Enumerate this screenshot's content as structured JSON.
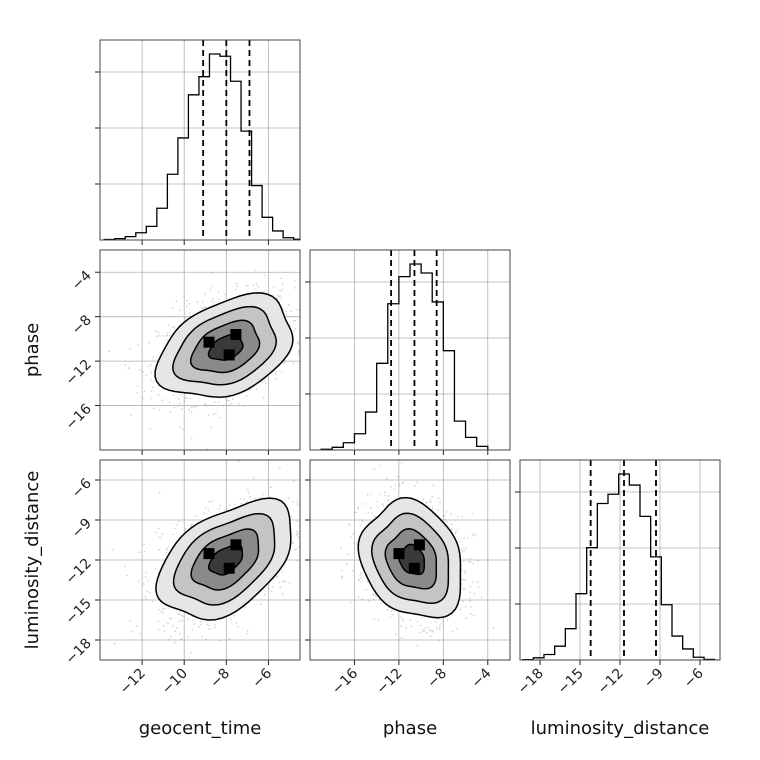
{
  "chart_data": {
    "type": "corner",
    "parameters": [
      "geocent_time",
      "phase",
      "luminosity_distance"
    ],
    "grid": true,
    "ranges": {
      "geocent_time": [
        -14.0,
        -4.5
      ],
      "phase": [
        -20.0,
        -2.0
      ],
      "luminosity_distance": [
        -19.5,
        -4.5
      ]
    },
    "ticks": {
      "geocent_time": [
        -12,
        -10,
        -8,
        -6
      ],
      "phase": [
        -16,
        -12,
        -8,
        -4
      ],
      "luminosity_distance": [
        -18,
        -15,
        -12,
        -9,
        -6
      ]
    },
    "tick_labels": {
      "geocent_time": [
        "−12",
        "−10",
        "−8",
        "−6"
      ],
      "phase": [
        "−16",
        "−12",
        "−8",
        "−4"
      ],
      "luminosity_distance": [
        "−18",
        "−15",
        "−12",
        "−9",
        "−6"
      ]
    },
    "quantiles": {
      "geocent_time": [
        -9.1,
        -8.0,
        -6.9
      ],
      "phase": [
        -12.7,
        -10.6,
        -8.6
      ],
      "luminosity_distance": [
        -14.2,
        -11.7,
        -9.3
      ]
    },
    "histograms": {
      "geocent_time": {
        "bins": [
          -13.8,
          -13.3,
          -12.8,
          -12.3,
          -11.8,
          -11.3,
          -10.8,
          -10.3,
          -9.8,
          -9.3,
          -8.8,
          -8.3,
          -7.8,
          -7.3,
          -6.8,
          -6.3,
          -5.8,
          -5.3,
          -4.8,
          -4.5
        ],
        "counts": [
          2,
          6,
          15,
          32,
          60,
          140,
          290,
          450,
          640,
          720,
          820,
          810,
          700,
          480,
          240,
          100,
          40,
          10,
          3
        ]
      },
      "phase": {
        "bins": [
          -19.0,
          -18.0,
          -17.0,
          -16.0,
          -15.0,
          -14.0,
          -13.0,
          -12.0,
          -11.0,
          -10.0,
          -9.0,
          -8.0,
          -7.0,
          -6.0,
          -5.0,
          -4.0
        ],
        "counts": [
          4,
          15,
          40,
          90,
          210,
          480,
          810,
          960,
          1030,
          980,
          820,
          550,
          160,
          70,
          20
        ]
      },
      "luminosity_distance": {
        "bins": [
          -19.3,
          -18.5,
          -17.7,
          -16.9,
          -16.1,
          -15.3,
          -14.5,
          -13.7,
          -12.9,
          -12.1,
          -11.3,
          -10.5,
          -9.7,
          -8.9,
          -8.1,
          -7.3,
          -6.5,
          -5.7,
          -4.9
        ],
        "counts": [
          2,
          12,
          30,
          75,
          170,
          360,
          610,
          850,
          900,
          1010,
          950,
          780,
          560,
          300,
          130,
          60,
          15,
          3
        ]
      }
    },
    "correlations": {
      "phase|geocent_time": 0.35,
      "luminosity_distance|geocent_time": 0.45,
      "luminosity_distance|phase": -0.2
    },
    "means": {
      "geocent_time": -8.0,
      "phase": -10.8,
      "luminosity_distance": -12.0
    },
    "sigmas": {
      "geocent_time": 1.6,
      "phase": 2.3,
      "luminosity_distance": 2.2
    }
  }
}
